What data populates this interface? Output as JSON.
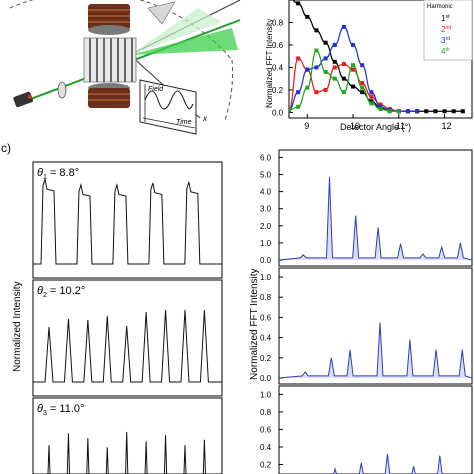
{
  "panel_labels": {
    "c": "c)"
  },
  "schematic": {
    "field_label": "Field",
    "time_label": "Time",
    "axis_x": "x"
  },
  "chart_data": [
    {
      "id": "harmonics",
      "type": "line",
      "title": "",
      "xlabel": "Detector Angle (°)",
      "ylabel": "Normalized FFT Intensity",
      "xlim": [
        8.6,
        12.6
      ],
      "ylim": [
        -0.05,
        1.0
      ],
      "xticks": [
        "9",
        "10",
        "11",
        "12"
      ],
      "yticks": [
        "0.0",
        "0.2",
        "0.4",
        "0.6",
        "0.8"
      ],
      "legend": {
        "title": "Harmonic",
        "position": "top-right",
        "entries": [
          {
            "base": "1",
            "sup": "st",
            "color": "#000000"
          },
          {
            "base": "2",
            "sup": "nd",
            "color": "#e41a1c"
          },
          {
            "base": "3",
            "sup": "rd",
            "color": "#2233cc"
          },
          {
            "base": "4",
            "sup": "th",
            "color": "#1ea51e"
          }
        ]
      },
      "series": [
        {
          "name": "1st",
          "color": "#000000",
          "x": [
            8.6,
            8.8,
            9.0,
            9.2,
            9.4,
            9.6,
            9.8,
            10.0,
            10.2,
            10.4,
            10.6,
            10.8,
            11.0,
            11.2,
            11.4,
            11.6,
            11.8,
            12.0,
            12.2,
            12.4
          ],
          "y": [
            1.02,
            0.97,
            0.85,
            0.73,
            0.62,
            0.45,
            0.3,
            0.23,
            0.18,
            0.1,
            0.04,
            0.02,
            0.01,
            0.01,
            0.01,
            0.01,
            0.01,
            0.01,
            0.01,
            0.01
          ]
        },
        {
          "name": "2nd",
          "color": "#e41a1c",
          "x": [
            8.6,
            8.8,
            9.0,
            9.2,
            9.4,
            9.6,
            9.8,
            10.0,
            10.2,
            10.4,
            10.6,
            10.8,
            11.0,
            11.2,
            11.4
          ],
          "y": [
            0.02,
            0.48,
            0.38,
            0.18,
            0.2,
            0.4,
            0.43,
            0.38,
            0.26,
            0.14,
            0.07,
            0.03,
            0.01,
            0.01,
            0.01
          ]
        },
        {
          "name": "3rd",
          "color": "#2233cc",
          "x": [
            8.6,
            8.8,
            9.0,
            9.2,
            9.4,
            9.6,
            9.8,
            10.0,
            10.2,
            10.4,
            10.6,
            10.8,
            11.0,
            11.2,
            11.4
          ],
          "y": [
            0.02,
            0.18,
            0.38,
            0.4,
            0.48,
            0.6,
            0.76,
            0.6,
            0.42,
            0.18,
            0.05,
            0.02,
            0.01,
            0.01,
            0.01
          ]
        },
        {
          "name": "4th",
          "color": "#1ea51e",
          "x": [
            8.6,
            8.8,
            9.0,
            9.2,
            9.4,
            9.6,
            9.8,
            10.0,
            10.2,
            10.4,
            10.6,
            10.8,
            11.0
          ],
          "y": [
            0.02,
            0.05,
            0.22,
            0.55,
            0.36,
            0.3,
            0.18,
            0.42,
            0.22,
            0.08,
            0.03,
            0.01,
            0.01
          ]
        }
      ]
    },
    {
      "id": "time-traces",
      "type": "line",
      "ylabel": "Normalized Intensity",
      "panels": [
        {
          "label_sym": "θ",
          "label_sub": "1",
          "label_rest": " = 8.8°",
          "pulses": 5,
          "shape": "double-hump",
          "heights": [
            0.85,
            0.79,
            0.79,
            0.81,
            0.82
          ]
        },
        {
          "label_sym": "θ",
          "label_sub": "2",
          "label_rest": " = 10.2°",
          "pulses": 9,
          "shape": "peak",
          "heights": [
            0.55,
            0.63,
            0.62,
            0.66,
            0.56,
            0.7,
            0.72,
            0.72,
            0.72
          ]
        },
        {
          "label_sym": "θ",
          "label_sub": "3",
          "label_rest": " = 11.0°",
          "pulses": 9,
          "shape": "spike",
          "heights": [
            0.55,
            0.7,
            0.64,
            0.52,
            0.72,
            0.6,
            0.68,
            0.55,
            0.62
          ]
        }
      ]
    },
    {
      "id": "fft-spectra",
      "type": "area",
      "ylabel": "Normalized FFT Intensity",
      "color": "#2f3fb0",
      "fill": "#dcdff3",
      "panels": [
        {
          "yticks": [
            "0.0",
            "1.0",
            "2.0",
            "3.0",
            "4.0",
            "5.0",
            "6.0"
          ],
          "ymax": 6.2,
          "peaks": [
            [
              0.13,
              0.3
            ],
            [
              0.27,
              4.85
            ],
            [
              0.41,
              2.6
            ],
            [
              0.53,
              1.9
            ],
            [
              0.65,
              0.95
            ],
            [
              0.77,
              0.35
            ],
            [
              0.87,
              0.75
            ],
            [
              0.97,
              1.0
            ]
          ]
        },
        {
          "yticks": [
            "0.0",
            "0.2",
            "0.4",
            "0.6",
            "0.8",
            "1.0"
          ],
          "ymax": 1.05,
          "peaks": [
            [
              0.14,
              0.06
            ],
            [
              0.28,
              0.2
            ],
            [
              0.38,
              0.28
            ],
            [
              0.54,
              0.55
            ],
            [
              0.7,
              0.38
            ],
            [
              0.84,
              0.28
            ],
            [
              0.98,
              0.28
            ]
          ]
        },
        {
          "yticks": [
            "0.2",
            "0.4",
            "0.6",
            "0.8",
            "1.0"
          ],
          "ymax": 1.05,
          "peaks": [
            [
              0.15,
              0.05
            ],
            [
              0.3,
              0.15
            ],
            [
              0.44,
              0.22
            ],
            [
              0.58,
              0.32
            ],
            [
              0.72,
              0.18
            ],
            [
              0.86,
              0.3
            ]
          ]
        }
      ]
    }
  ]
}
